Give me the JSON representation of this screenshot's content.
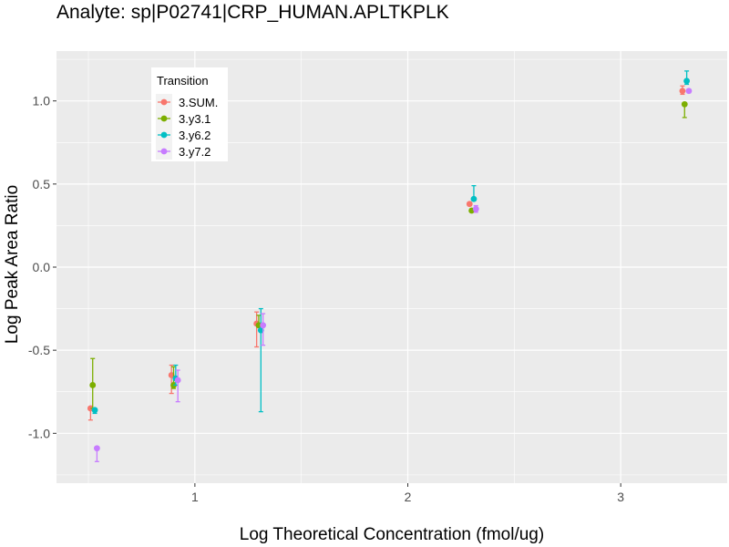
{
  "chart_data": {
    "type": "scatter",
    "title": "Analyte: sp|P02741|CRP_HUMAN.APLTKPLK",
    "xlabel": "Log Theoretical Concentration (fmol/ug)",
    "ylabel": "Log Peak Area Ratio",
    "xlim": [
      0.35,
      3.5
    ],
    "ylim": [
      -1.3,
      1.3
    ],
    "x_ticks": [
      1,
      2,
      3
    ],
    "y_ticks": [
      -1.0,
      -0.5,
      0.0,
      0.5,
      1.0
    ],
    "x_tick_labels": [
      "1",
      "2",
      "3"
    ],
    "y_tick_labels": [
      "-1.0",
      "-0.5",
      "0.0",
      "0.5",
      "1.0"
    ],
    "grid": true,
    "error_bars": true,
    "legend": {
      "title": "Transition",
      "position": "top-left"
    },
    "series": [
      {
        "name": "3.SUM.",
        "color": "#F8766D",
        "points": [
          {
            "x": 0.51,
            "y": -0.85,
            "lo": -0.92,
            "hi": -0.84
          },
          {
            "x": 0.89,
            "y": -0.65,
            "lo": -0.76,
            "hi": -0.59
          },
          {
            "x": 1.29,
            "y": -0.34,
            "lo": -0.48,
            "hi": -0.27
          },
          {
            "x": 2.29,
            "y": 0.38,
            "lo": 0.37,
            "hi": 0.39
          },
          {
            "x": 3.29,
            "y": 1.06,
            "lo": 1.04,
            "hi": 1.09
          }
        ]
      },
      {
        "name": "3.y3.1",
        "color": "#7CAE00",
        "points": [
          {
            "x": 0.52,
            "y": -0.71,
            "lo": -0.85,
            "hi": -0.55
          },
          {
            "x": 0.9,
            "y": -0.71,
            "lo": -0.73,
            "hi": -0.6
          },
          {
            "x": 1.3,
            "y": -0.35,
            "lo": -0.36,
            "hi": -0.29
          },
          {
            "x": 2.3,
            "y": 0.34,
            "lo": 0.33,
            "hi": 0.35
          },
          {
            "x": 3.3,
            "y": 0.98,
            "lo": 0.9,
            "hi": 0.98
          }
        ]
      },
      {
        "name": "3.y6.2",
        "color": "#00BFC4",
        "points": [
          {
            "x": 0.53,
            "y": -0.86,
            "lo": -0.88,
            "hi": -0.85
          },
          {
            "x": 0.91,
            "y": -0.67,
            "lo": -0.71,
            "hi": -0.59
          },
          {
            "x": 1.31,
            "y": -0.38,
            "lo": -0.87,
            "hi": -0.25
          },
          {
            "x": 2.31,
            "y": 0.41,
            "lo": 0.4,
            "hi": 0.49
          },
          {
            "x": 3.31,
            "y": 1.12,
            "lo": 1.1,
            "hi": 1.18
          }
        ]
      },
      {
        "name": "3.y7.2",
        "color": "#C77CFF",
        "points": [
          {
            "x": 0.54,
            "y": -1.09,
            "lo": -1.17,
            "hi": -1.09
          },
          {
            "x": 0.92,
            "y": -0.68,
            "lo": -0.81,
            "hi": -0.62
          },
          {
            "x": 1.32,
            "y": -0.35,
            "lo": -0.47,
            "hi": -0.28
          },
          {
            "x": 2.32,
            "y": 0.35,
            "lo": 0.33,
            "hi": 0.37
          },
          {
            "x": 3.32,
            "y": 1.06,
            "lo": 1.05,
            "hi": 1.07
          }
        ]
      }
    ]
  }
}
